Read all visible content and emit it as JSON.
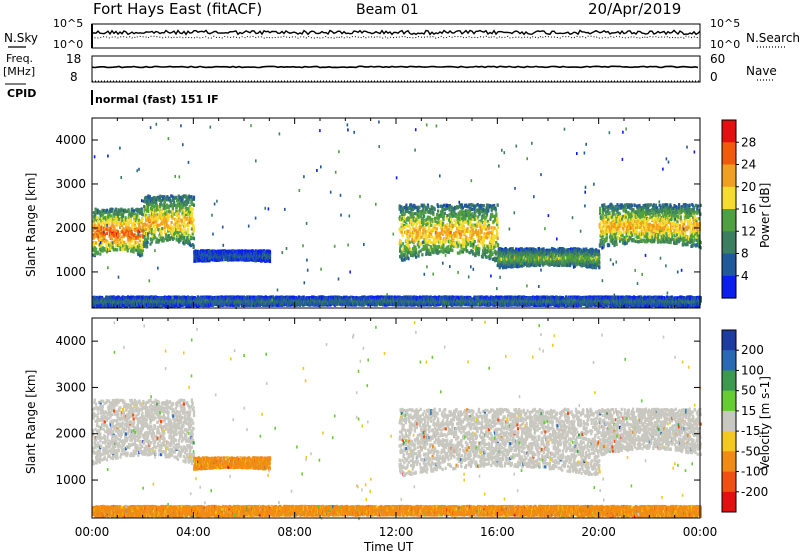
{
  "header": {
    "station": "Fort Hays East (fitACF)",
    "beam": "Beam 01",
    "date": "20/Apr/2019"
  },
  "noise_panel": {
    "left_label": "N.Sky",
    "right_label": "N.Search",
    "left_ticks": [
      "10^5",
      "10^0"
    ],
    "right_ticks": [
      "10^5",
      "10^0"
    ],
    "sky_level": 0.65,
    "search_level": 0.45
  },
  "freq_panel": {
    "label_line1": "Freq.",
    "label_line2": "[MHz]",
    "right_label": "Nave",
    "left_ticks": [
      "18",
      "8"
    ],
    "right_ticks": [
      "60",
      "0"
    ],
    "freq_level": 0.58
  },
  "cpid_panel": {
    "label": "CPID",
    "text": "normal (fast) 151 IF"
  },
  "axes": {
    "xlabel": "Time UT",
    "x_ticks": [
      "00:00",
      "04:00",
      "08:00",
      "12:00",
      "16:00",
      "20:00",
      "00:00"
    ],
    "ylabel": "Slant Range [km]",
    "y_ticks": [
      "4000",
      "3000",
      "2000",
      "1000"
    ],
    "y_tick_values": [
      4000,
      3000,
      2000,
      1000
    ],
    "ylim": [
      180,
      4500
    ],
    "xlim_hours": [
      0,
      24
    ]
  },
  "power_colorbar": {
    "label": "Power [dB]",
    "ticks": [
      "28",
      "24",
      "20",
      "16",
      "12",
      "8",
      "4"
    ],
    "colors": [
      "#e41010",
      "#f05a0a",
      "#f0a020",
      "#f5dc30",
      "#50a040",
      "#3c7e60",
      "#205a9a",
      "#0a1ef0"
    ]
  },
  "velocity_colorbar": {
    "label": "Velocity [m s-1]",
    "ticks": [
      "200",
      "100",
      "50",
      "15",
      "-15",
      "-50",
      "-100",
      "-200"
    ],
    "colors": [
      "#1e3ca0",
      "#2a6ab4",
      "#3c9a50",
      "#66cc33",
      "#c8c8c0",
      "#f5c820",
      "#f08c14",
      "#f05014",
      "#e41010"
    ]
  },
  "chart_data": [
    {
      "type": "heatmap",
      "title": "Power [dB]",
      "xlabel": "Time UT",
      "ylabel": "Slant Range [km]",
      "x_range_hours": [
        0,
        24
      ],
      "ylim": [
        180,
        4500
      ],
      "echo_bands": [
        {
          "t0": 0.0,
          "t1": 2.0,
          "r0": 1300,
          "r1": 2400,
          "peak_db": 24
        },
        {
          "t0": 2.0,
          "t1": 4.0,
          "r0": 1500,
          "r1": 2700,
          "peak_db": 20
        },
        {
          "t0": 4.0,
          "t1": 7.0,
          "r0": 1200,
          "r1": 1450,
          "peak_db": 6
        },
        {
          "t0": 12.1,
          "t1": 16.0,
          "r0": 1200,
          "r1": 2500,
          "peak_db": 20
        },
        {
          "t0": 16.0,
          "t1": 20.0,
          "r0": 1050,
          "r1": 1500,
          "peak_db": 14
        },
        {
          "t0": 20.0,
          "t1": 24.0,
          "r0": 1500,
          "r1": 2500,
          "peak_db": 20
        },
        {
          "t0": 0.0,
          "t1": 24.0,
          "r0": 180,
          "r1": 400,
          "peak_db": 8
        }
      ]
    },
    {
      "type": "heatmap",
      "title": "Velocity [m s-1]",
      "xlabel": "Time UT",
      "ylabel": "Slant Range [km]",
      "x_range_hours": [
        0,
        24
      ],
      "ylim": [
        180,
        4500
      ],
      "echo_bands": [
        {
          "t0": 0.0,
          "t1": 4.0,
          "r0": 1300,
          "r1": 2700,
          "velocity": 0
        },
        {
          "t0": 4.0,
          "t1": 7.0,
          "r0": 1200,
          "r1": 1450,
          "velocity": -60
        },
        {
          "t0": 12.1,
          "t1": 20.0,
          "r0": 1050,
          "r1": 2500,
          "velocity": 0
        },
        {
          "t0": 20.0,
          "t1": 24.0,
          "r0": 1500,
          "r1": 2500,
          "velocity": 0
        },
        {
          "t0": 0.0,
          "t1": 24.0,
          "r0": 180,
          "r1": 400,
          "velocity": -60
        }
      ]
    }
  ]
}
